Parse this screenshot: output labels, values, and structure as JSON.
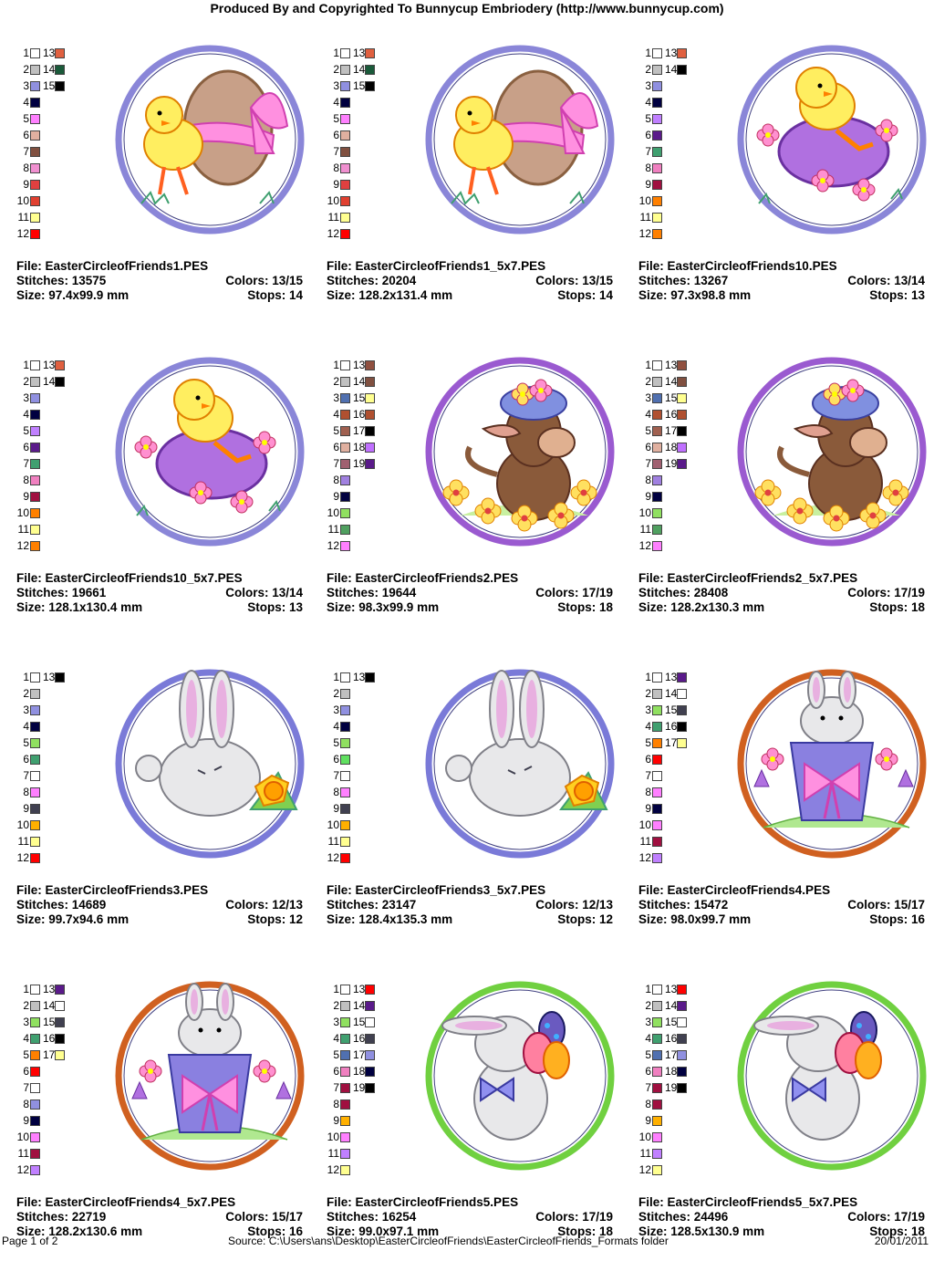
{
  "header": "Produced By and Copyrighted To Bunnycup Embriodery (http://www.bunnycup.com)",
  "labels": {
    "file": "File:",
    "stitches": "Stitches:",
    "colors": "Colors:",
    "size": "Size:",
    "stops": "Stops:"
  },
  "designs": [
    {
      "file": "EasterCircleofFriends1.PES",
      "stitches": "13575",
      "colors": "13/15",
      "size": "97.4x99.9 mm",
      "stops": "14",
      "art": "chick-egg",
      "ring": "#8a86d8",
      "swatches": [
        "#ffffff",
        "#c0c0c0",
        "#9090e0",
        "#000040",
        "#ff80ff",
        "#e0b0a0",
        "#805040",
        "#f090d0",
        "#e04040",
        "#e04030",
        "#ffff90",
        "#ff0000",
        "#e06040",
        "#1a5a3a",
        "#000000"
      ]
    },
    {
      "file": "EasterCircleofFriends1_5x7.PES",
      "stitches": "20204",
      "colors": "13/15",
      "size": "128.2x131.4 mm",
      "stops": "14",
      "art": "chick-egg",
      "ring": "#8a86d8",
      "swatches": [
        "#ffffff",
        "#c0c0c0",
        "#9090e0",
        "#000040",
        "#ff80ff",
        "#e0b0a0",
        "#805040",
        "#f090d0",
        "#e04040",
        "#e04030",
        "#ffff90",
        "#ff0000",
        "#e06040",
        "#1a5a3a",
        "#000000"
      ]
    },
    {
      "file": "EasterCircleofFriends10.PES",
      "stitches": "13267",
      "colors": "13/14",
      "size": "97.3x98.8 mm",
      "stops": "13",
      "art": "chick-purple-egg",
      "ring": "#8a86d8",
      "swatches": [
        "#ffffff",
        "#c0c0c0",
        "#9090e0",
        "#000040",
        "#c080ff",
        "#5a1a8a",
        "#40a070",
        "#f080c0",
        "#a01040",
        "#ff8000",
        "#ffff90",
        "#ff8000",
        "#e06040",
        "#000000"
      ]
    },
    {
      "file": "EasterCircleofFriends10_5x7.PES",
      "stitches": "19661",
      "colors": "13/14",
      "size": "128.1x130.4 mm",
      "stops": "13",
      "art": "chick-purple-egg",
      "ring": "#8a86d8",
      "swatches": [
        "#ffffff",
        "#c0c0c0",
        "#9090e0",
        "#000040",
        "#c080ff",
        "#5a1a8a",
        "#40a070",
        "#f080c0",
        "#a01040",
        "#ff8000",
        "#ffff90",
        "#ff8000",
        "#e06040",
        "#000000"
      ]
    },
    {
      "file": "EasterCircleofFriends2.PES",
      "stitches": "19644",
      "colors": "17/19",
      "size": "98.3x99.9 mm",
      "stops": "18",
      "art": "donkey",
      "ring": "#9a5ad0",
      "swatches": [
        "#ffffff",
        "#c0c0c0",
        "#5070b0",
        "#b05030",
        "#a06050",
        "#e0b0a0",
        "#a06070",
        "#a080e0",
        "#000040",
        "#90e060",
        "#50a060",
        "#ff80ff",
        "#905040",
        "#805040",
        "#ffff90",
        "#b05030",
        "#000000",
        "#c070ff",
        "#5a1a8a"
      ]
    },
    {
      "file": "EasterCircleofFriends2_5x7.PES",
      "stitches": "28408",
      "colors": "17/19",
      "size": "128.2x130.3 mm",
      "stops": "18",
      "art": "donkey",
      "ring": "#9a5ad0",
      "swatches": [
        "#ffffff",
        "#c0c0c0",
        "#5070b0",
        "#b05030",
        "#a06050",
        "#e0b0a0",
        "#a06070",
        "#a080e0",
        "#000040",
        "#90e060",
        "#50a060",
        "#ff80ff",
        "#905040",
        "#805040",
        "#ffff90",
        "#b05030",
        "#000000",
        "#c070ff",
        "#5a1a8a"
      ]
    },
    {
      "file": "EasterCircleofFriends3.PES",
      "stitches": "14689",
      "colors": "12/13",
      "size": "99.7x94.6 mm",
      "stops": "12",
      "art": "bunny-daffodil",
      "ring": "#7a7ad8",
      "swatches": [
        "#ffffff",
        "#c0c0c0",
        "#9090e0",
        "#000040",
        "#90e060",
        "#40a070",
        "#ffffff",
        "#ff80ff",
        "#404050",
        "#ffb000",
        "#ffff90",
        "#ff0000",
        "#000000"
      ]
    },
    {
      "file": "EasterCircleofFriends3_5x7.PES",
      "stitches": "23147",
      "colors": "12/13",
      "size": "128.4x135.3 mm",
      "stops": "12",
      "art": "bunny-daffodil2",
      "ring": "#7a7ad8",
      "swatches": [
        "#ffffff",
        "#c0c0c0",
        "#9090e0",
        "#000040",
        "#90e060",
        "#60e060",
        "#ffffff",
        "#ff80ff",
        "#404050",
        "#ffb000",
        "#ffff90",
        "#ff0000",
        "#000000"
      ]
    },
    {
      "file": "EasterCircleofFriends4.PES",
      "stitches": "15472",
      "colors": "15/17",
      "size": "98.0x99.7 mm",
      "stops": "16",
      "art": "bunny-pot",
      "ring": "#d06020",
      "swatches": [
        "#ffffff",
        "#c0c0c0",
        "#90e060",
        "#40a070",
        "#ff8000",
        "#ff0000",
        "#ffffff",
        "#ff80ff",
        "#000040",
        "#ff80ff",
        "#a01040",
        "#c080ff",
        "#5a1a8a",
        "#ffffff",
        "#404050",
        "#000000",
        "#ffff90"
      ]
    },
    {
      "file": "EasterCircleofFriends4_5x7.PES",
      "stitches": "22719",
      "colors": "15/17",
      "size": "128.2x130.6 mm",
      "stops": "16",
      "art": "bunny-pot",
      "ring": "#d06020",
      "swatches": [
        "#ffffff",
        "#c0c0c0",
        "#90e060",
        "#40a070",
        "#ff8000",
        "#ff0000",
        "#ffffff",
        "#9090e0",
        "#000040",
        "#ff80ff",
        "#a01040",
        "#c080ff",
        "#5a1a8a",
        "#ffffff",
        "#404050",
        "#000000",
        "#ffff90"
      ]
    },
    {
      "file": "EasterCircleofFriends5.PES",
      "stitches": "16254",
      "colors": "17/19",
      "size": "99.0x97.1 mm",
      "stops": "18",
      "art": "bunny-eggs",
      "ring": "#70d040",
      "swatches": [
        "#ffffff",
        "#c0c0c0",
        "#90e060",
        "#40a070",
        "#5070b0",
        "#f080c0",
        "#a01040",
        "#a01040",
        "#ffb000",
        "#ff80ff",
        "#c080ff",
        "#ffff90",
        "#ff0000",
        "#5a1a8a",
        "#ffffff",
        "#404050",
        "#9090e0",
        "#000040",
        "#000000"
      ]
    },
    {
      "file": "EasterCircleofFriends5_5x7.PES",
      "stitches": "24496",
      "colors": "17/19",
      "size": "128.5x130.9 mm",
      "stops": "18",
      "art": "bunny-eggs2",
      "ring": "#70d040",
      "swatches": [
        "#ffffff",
        "#c0c0c0",
        "#90e060",
        "#40a070",
        "#5070b0",
        "#f080c0",
        "#a01040",
        "#a01040",
        "#ffb000",
        "#ff80ff",
        "#c080ff",
        "#ffff90",
        "#ff0000",
        "#5a1a8a",
        "#ffffff",
        "#404050",
        "#9090e0",
        "#000040",
        "#000000"
      ]
    }
  ],
  "footer": {
    "page": "Page 1 of 2",
    "source": "Source: C:\\Users\\ans\\Desktop\\EasterCircleofFriends\\EasterCircleofFriends_Formats folder",
    "date": "20/01/2011"
  }
}
